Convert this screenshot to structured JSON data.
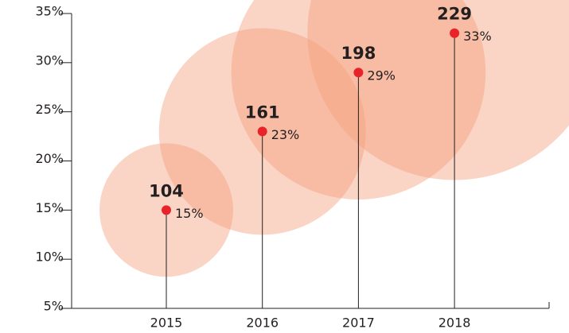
{
  "chart_data": {
    "type": "bubble",
    "categories": [
      "2015",
      "2016",
      "2017",
      "2018"
    ],
    "values": [
      15,
      23,
      29,
      33
    ],
    "value_labels": [
      "15%",
      "23%",
      "29%",
      "33%"
    ],
    "sizes": [
      104,
      161,
      198,
      229
    ],
    "color": "#f4a07c",
    "dot_color": "#e8232a",
    "ylim": [
      5,
      35
    ],
    "yticks": [
      {
        "value": 5,
        "label": "5%"
      },
      {
        "value": 10,
        "label": "10%"
      },
      {
        "value": 15,
        "label": "15%"
      },
      {
        "value": 20,
        "label": "20%"
      },
      {
        "value": 25,
        "label": "25%"
      },
      {
        "value": 30,
        "label": "30%"
      },
      {
        "value": 35,
        "label": "35%"
      }
    ]
  }
}
